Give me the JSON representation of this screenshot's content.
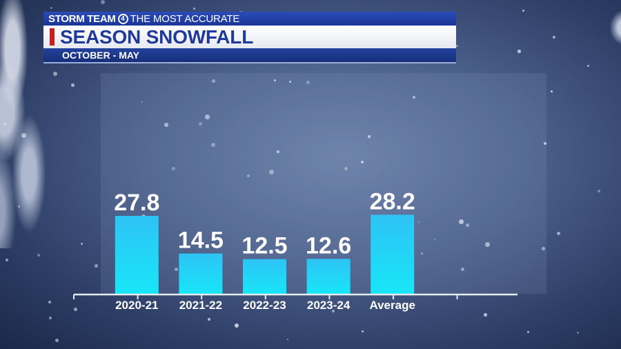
{
  "header": {
    "brand": "STORM TEAM",
    "brand_badge": "4",
    "tagline": "THE MOST ACCURATE",
    "title": "SEASON SNOWFALL",
    "subtitle": "OCTOBER - MAY"
  },
  "colors": {
    "bar_top": "#2ec3f5",
    "bar_bottom": "#18e6f7",
    "accent": "#c8201f",
    "header_blue": "#1f3a99"
  },
  "chart_data": {
    "type": "bar",
    "categories": [
      "2020-21",
      "2021-22",
      "2022-23",
      "2023-24",
      "Average"
    ],
    "values": [
      27.8,
      14.5,
      12.5,
      12.6,
      28.2
    ],
    "value_labels": [
      "27.8",
      "14.5",
      "12.5",
      "12.6",
      "28.2"
    ],
    "title": "SEASON SNOWFALL",
    "xlabel": "",
    "ylabel": "",
    "ylim": [
      0,
      30
    ],
    "grid": false
  }
}
